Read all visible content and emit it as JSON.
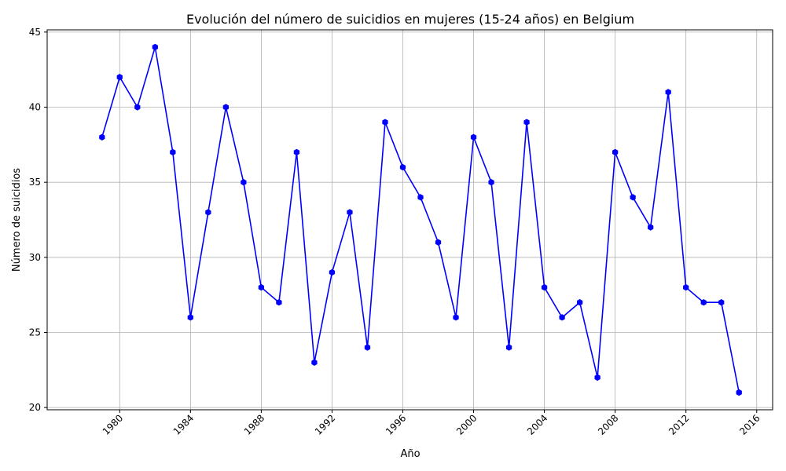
{
  "chart_data": {
    "type": "line",
    "title": "Evolución del número de suicidios en mujeres (15-24 años) en Belgium",
    "xlabel": "Año",
    "ylabel": "Número de suicidios",
    "xlim": [
      1975.9,
      2016.9
    ],
    "ylim": [
      19.85,
      45.15
    ],
    "x_ticks": [
      "1980",
      "1984",
      "1988",
      "1992",
      "1996",
      "2000",
      "2004",
      "2008",
      "2012",
      "2016"
    ],
    "y_ticks": [
      "20",
      "25",
      "30",
      "35",
      "40",
      "45"
    ],
    "grid": true,
    "series": [
      {
        "color": "#0000ff",
        "marker": "hexagon",
        "x": [
          1979,
          1980,
          1981,
          1982,
          1983,
          1984,
          1985,
          1986,
          1987,
          1988,
          1989,
          1990,
          1991,
          1992,
          1993,
          1994,
          1995,
          1996,
          1997,
          1998,
          1999,
          2000,
          2001,
          2002,
          2003,
          2004,
          2005,
          2006,
          2007,
          2008,
          2009,
          2010,
          2011,
          2012,
          2013,
          2014,
          2015
        ],
        "y": [
          38,
          42,
          40,
          44,
          37,
          26,
          33,
          40,
          35,
          28,
          27,
          37,
          23,
          29,
          33,
          24,
          39,
          36,
          34,
          31,
          26,
          38,
          35,
          24,
          39,
          28,
          26,
          27,
          22,
          37,
          34,
          32,
          41,
          28,
          27,
          27,
          21
        ]
      }
    ]
  }
}
